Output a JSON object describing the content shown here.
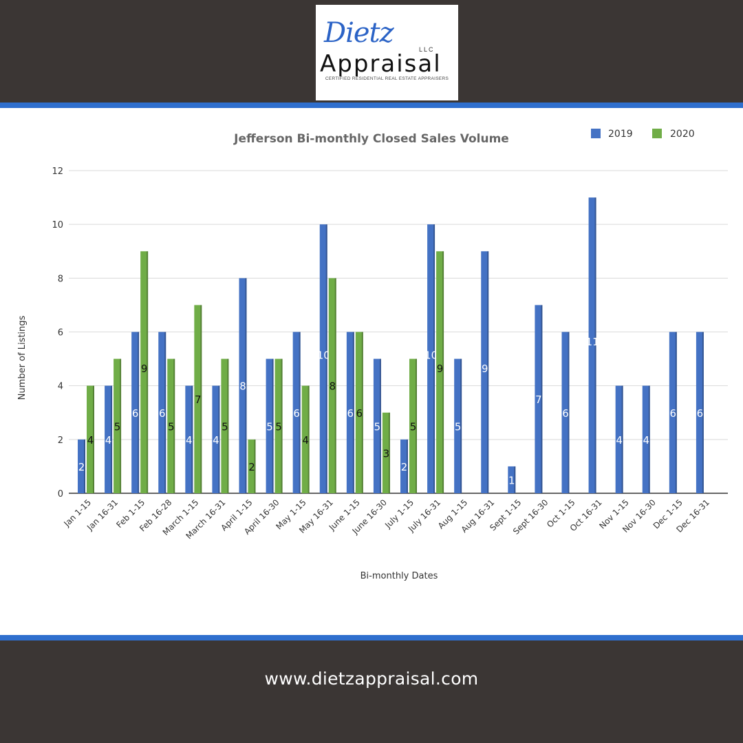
{
  "logo": {
    "script_text": "Dietz",
    "llc_text": "LLC",
    "name_text": "Appraisal",
    "tagline": "CERTIFIED RESIDENTIAL REAL ESTATE APPRAISERS"
  },
  "footer": {
    "url": "www.dietzappraisal.com"
  },
  "colors": {
    "series_2019": "#4472c4",
    "series_2020": "#70ad47",
    "accent": "#2f6fce",
    "background": "#3b3634"
  },
  "chart_data": {
    "type": "bar",
    "title": "Jefferson Bi-monthly Closed Sales Volume",
    "xlabel": "Bi-monthly Dates",
    "ylabel": "Number of Listings",
    "ylim": [
      0,
      12
    ],
    "yticks": [
      0,
      2,
      4,
      6,
      8,
      10,
      12
    ],
    "grid": true,
    "legend_position": "top-right",
    "categories": [
      "Jan 1-15",
      "Jan 16-31",
      "Feb 1-15",
      "Feb 16-28",
      "March 1-15",
      "March 16-31",
      "April 1-15",
      "April 16-30",
      "May 1-15",
      "May 16-31",
      "June 1-15",
      "June 16-30",
      "July 1-15",
      "July 16-31",
      "Aug 1-15",
      "Aug 16-31",
      "Sept 1-15",
      "Sept 16-30",
      "Oct 1-15",
      "Oct 16-31",
      "Nov 1-15",
      "Nov 16-30",
      "Dec 1-15",
      "Dec 16-31"
    ],
    "series": [
      {
        "name": "2019",
        "values": [
          2,
          4,
          6,
          6,
          4,
          4,
          8,
          5,
          6,
          10,
          6,
          5,
          2,
          10,
          5,
          9,
          1,
          7,
          6,
          11,
          4,
          4,
          6,
          6
        ]
      },
      {
        "name": "2020",
        "values": [
          4,
          5,
          9,
          5,
          7,
          5,
          2,
          5,
          4,
          8,
          6,
          3,
          5,
          9,
          null,
          null,
          null,
          null,
          null,
          null,
          null,
          null,
          null,
          null
        ]
      }
    ]
  }
}
